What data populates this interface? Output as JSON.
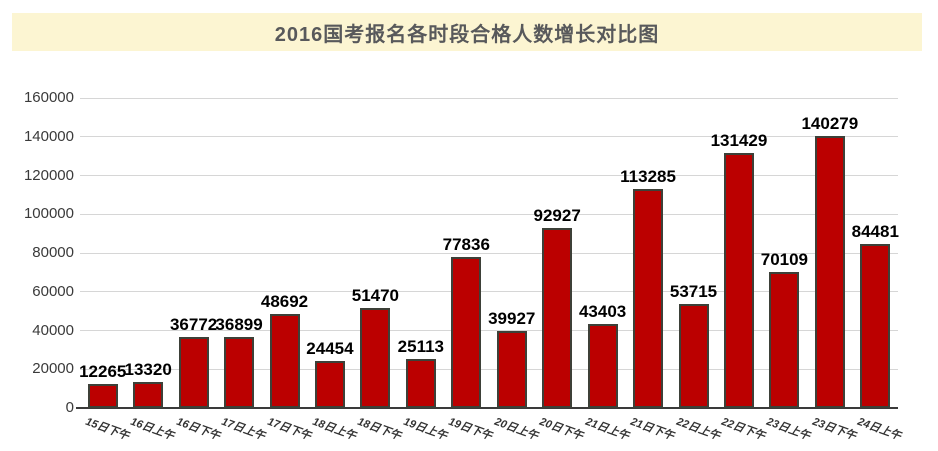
{
  "title": "2016国考报名各时段合格人数增长对比图",
  "colors": {
    "banner_bg": "#FCF5D2",
    "title_text": "#58595B",
    "bar_fill": "#BB0000",
    "bar_border": "#3D4038",
    "gridline": "#D6D6D6",
    "axis_line": "#3A3A3A",
    "tick_label": "#3A3A3A",
    "data_label": "#000000",
    "background": "#FFFFFF"
  },
  "chart_data": {
    "type": "bar",
    "title": "2016国考报名各时段合格人数增长对比图",
    "categories": [
      "15日下午",
      "16日上午",
      "16日下午",
      "17日上午",
      "17日下午",
      "18日上午",
      "18日下午",
      "19日上午",
      "19日下午",
      "20日上午",
      "20日下午",
      "21日上午",
      "21日下午",
      "22日上午",
      "22日下午",
      "23日上午",
      "23日下午",
      "24日上午"
    ],
    "values": [
      12265,
      13320,
      36772,
      36899,
      48692,
      24454,
      51470,
      25113,
      77836,
      39927,
      92927,
      43403,
      113285,
      53715,
      131429,
      70109,
      140279,
      84481
    ],
    "xlabel": "",
    "ylabel": "",
    "ylim": [
      0,
      160000
    ],
    "ytick_step": 20000,
    "ytick_labels": [
      "0",
      "20000",
      "40000",
      "60000",
      "80000",
      "100000",
      "120000",
      "140000",
      "160000"
    ],
    "grid": true,
    "legend_position": "none",
    "data_labels_shown": true
  }
}
